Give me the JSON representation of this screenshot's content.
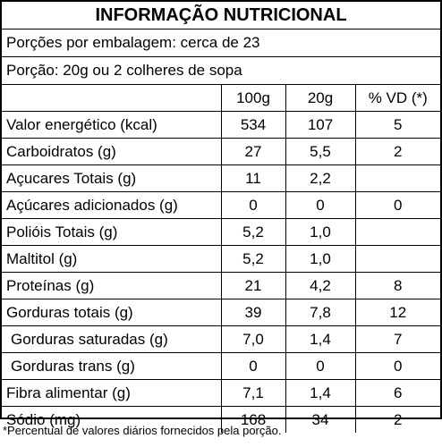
{
  "title": "INFORMAÇÃO NUTRICIONAL",
  "servings_per_package": "Porções por embalagem: cerca de 23",
  "serving_size": "Porção: 20g ou 2 colheres de sopa",
  "columns": [
    "100g",
    "20g",
    "% VD (*)"
  ],
  "rows": [
    {
      "name": "Valor energético (kcal)",
      "per100": "534",
      "per_serving": "107",
      "dv": "5"
    },
    {
      "name": "Carboidratos (g)",
      "per100": "27",
      "per_serving": "5,5",
      "dv": "2"
    },
    {
      "name": "Açucares Totais (g)",
      "per100": "11",
      "per_serving": "2,2",
      "dv": ""
    },
    {
      "name": "Açúcares adicionados (g)",
      "per100": "0",
      "per_serving": "0",
      "dv": "0"
    },
    {
      "name": "Polióis Totais (g)",
      "per100": "5,2",
      "per_serving": "1,0",
      "dv": ""
    },
    {
      "name": "Maltitol (g)",
      "per100": "5,2",
      "per_serving": "1,0",
      "dv": ""
    },
    {
      "name": "Proteínas (g)",
      "per100": "21",
      "per_serving": "4,2",
      "dv": "8"
    },
    {
      "name": "Gorduras totais (g)",
      "per100": "39",
      "per_serving": "7,8",
      "dv": "12"
    },
    {
      "name": "Gorduras saturadas (g)",
      "per100": "7,0",
      "per_serving": "1,4",
      "dv": "7"
    },
    {
      "name": "Gorduras trans (g)",
      "per100": "0",
      "per_serving": "0",
      "dv": "0"
    },
    {
      "name": "Fibra alimentar (g)",
      "per100": "7,1",
      "per_serving": "1,4",
      "dv": "6"
    },
    {
      "name": "Sódio (mg)",
      "per100": "168",
      "per_serving": "34",
      "dv": "2"
    }
  ],
  "footnote": "*Percentual de valores diários fornecidos pela porção."
}
